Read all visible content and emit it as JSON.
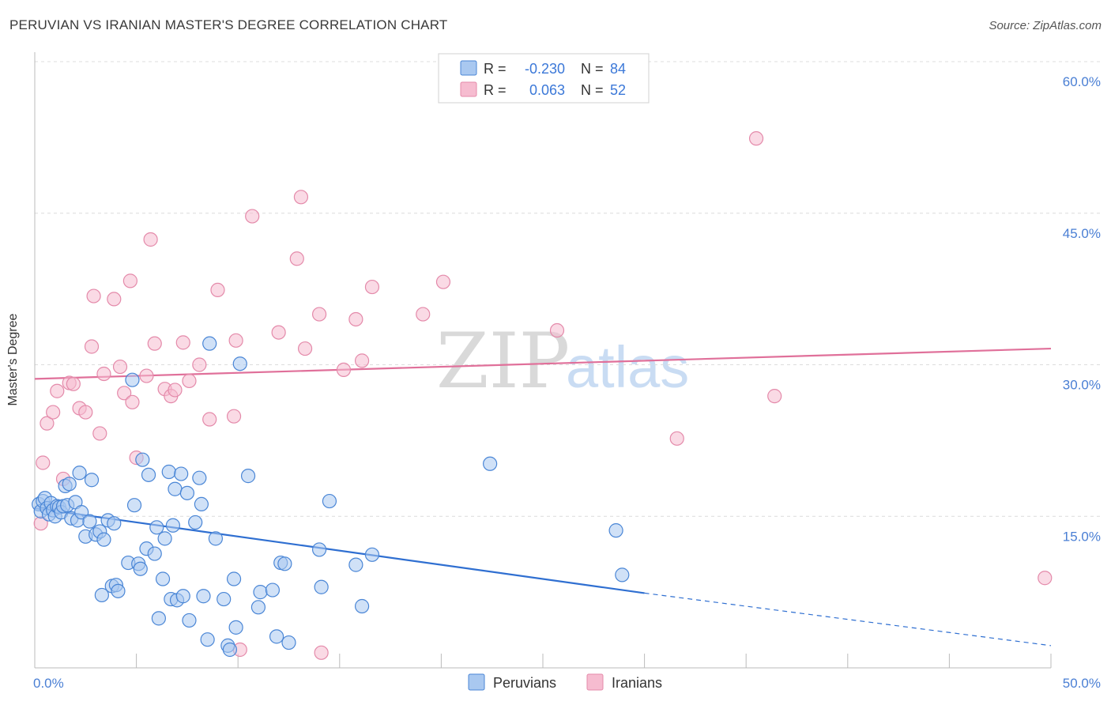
{
  "header": {
    "title": "PERUVIAN VS IRANIAN MASTER'S DEGREE CORRELATION CHART",
    "source": "Source: ZipAtlas.com"
  },
  "watermark": {
    "part1": "ZIP",
    "part2": "atlas"
  },
  "colors": {
    "peruvians_fill": "#a9c8f0",
    "peruvians_stroke": "#4a86d6",
    "peruvians_line": "#2f6fd1",
    "iranians_fill": "#f6bcd0",
    "iranians_stroke": "#e48aaa",
    "iranians_line": "#e0709a",
    "accent_text": "#3b78d8",
    "grid": "#dcdcdc"
  },
  "stats": {
    "peruvians": {
      "r_label": "R =",
      "r_value": "-0.230",
      "n_label": "N =",
      "n_value": "84"
    },
    "iranians": {
      "r_label": "R =",
      "r_value": "0.063",
      "n_label": "N =",
      "n_value": "52"
    }
  },
  "legend": {
    "peruvians": "Peruvians",
    "iranians": "Iranians"
  },
  "chart_data": {
    "type": "scatter",
    "title": "PERUVIAN VS IRANIAN MASTER'S DEGREE CORRELATION CHART",
    "xlabel": "",
    "ylabel": "Master's Degree",
    "xlim": [
      0,
      50
    ],
    "ylim": [
      0,
      60
    ],
    "x_tick_labels": [
      {
        "value": 0,
        "label": "0.0%"
      },
      {
        "value": 50,
        "label": "50.0%"
      }
    ],
    "y_tick_labels": [
      {
        "value": 15,
        "label": "15.0%"
      },
      {
        "value": 30,
        "label": "30.0%"
      },
      {
        "value": 45,
        "label": "45.0%"
      },
      {
        "value": 60,
        "label": "60.0%"
      }
    ],
    "grid": true,
    "legend_position": "bottom-center",
    "series": [
      {
        "name": "Peruvians",
        "R": -0.23,
        "N": 84,
        "trend": {
          "x0": 0,
          "y0": 15.8,
          "x1": 30,
          "y1": 7.4,
          "dashed_to_x": 50,
          "dashed_to_y": 2.2
        },
        "points": [
          [
            0.2,
            16.2
          ],
          [
            0.3,
            15.5
          ],
          [
            0.4,
            16.5
          ],
          [
            0.5,
            16.8
          ],
          [
            0.6,
            15.8
          ],
          [
            0.7,
            15.2
          ],
          [
            0.8,
            16.3
          ],
          [
            0.9,
            15.6
          ],
          [
            1.0,
            15.0
          ],
          [
            1.1,
            16.0
          ],
          [
            1.2,
            15.9
          ],
          [
            1.3,
            15.4
          ],
          [
            1.4,
            16.0
          ],
          [
            1.5,
            18.0
          ],
          [
            1.6,
            16.1
          ],
          [
            1.7,
            18.2
          ],
          [
            1.8,
            14.8
          ],
          [
            2.0,
            16.4
          ],
          [
            2.1,
            14.6
          ],
          [
            2.2,
            19.3
          ],
          [
            2.3,
            15.4
          ],
          [
            2.5,
            13.0
          ],
          [
            2.7,
            14.5
          ],
          [
            2.8,
            18.6
          ],
          [
            3.0,
            13.2
          ],
          [
            3.2,
            13.5
          ],
          [
            3.3,
            7.2
          ],
          [
            3.4,
            12.7
          ],
          [
            3.6,
            14.6
          ],
          [
            3.8,
            8.1
          ],
          [
            3.9,
            14.3
          ],
          [
            4.0,
            8.2
          ],
          [
            4.1,
            7.6
          ],
          [
            4.6,
            10.4
          ],
          [
            4.8,
            28.5
          ],
          [
            4.9,
            16.1
          ],
          [
            5.1,
            10.3
          ],
          [
            5.2,
            9.8
          ],
          [
            5.3,
            20.6
          ],
          [
            5.5,
            11.8
          ],
          [
            5.6,
            19.1
          ],
          [
            5.9,
            11.3
          ],
          [
            6.0,
            13.9
          ],
          [
            6.1,
            4.9
          ],
          [
            6.3,
            8.8
          ],
          [
            6.4,
            12.8
          ],
          [
            6.6,
            19.4
          ],
          [
            6.7,
            6.8
          ],
          [
            6.8,
            14.1
          ],
          [
            6.9,
            17.7
          ],
          [
            7.0,
            6.7
          ],
          [
            7.2,
            19.2
          ],
          [
            7.3,
            7.1
          ],
          [
            7.5,
            17.3
          ],
          [
            7.6,
            4.7
          ],
          [
            7.9,
            14.4
          ],
          [
            8.1,
            18.8
          ],
          [
            8.2,
            16.2
          ],
          [
            8.3,
            7.1
          ],
          [
            8.5,
            2.8
          ],
          [
            8.6,
            32.1
          ],
          [
            8.9,
            12.8
          ],
          [
            9.3,
            6.8
          ],
          [
            9.5,
            2.2
          ],
          [
            9.6,
            1.8
          ],
          [
            9.8,
            8.8
          ],
          [
            9.9,
            4.0
          ],
          [
            10.1,
            30.1
          ],
          [
            10.5,
            19.0
          ],
          [
            11.0,
            6.0
          ],
          [
            11.1,
            7.5
          ],
          [
            11.7,
            7.7
          ],
          [
            11.9,
            3.1
          ],
          [
            12.1,
            10.4
          ],
          [
            12.3,
            10.3
          ],
          [
            12.5,
            2.5
          ],
          [
            14.0,
            11.7
          ],
          [
            14.1,
            8.0
          ],
          [
            14.5,
            16.5
          ],
          [
            15.8,
            10.2
          ],
          [
            16.1,
            6.1
          ],
          [
            16.6,
            11.2
          ],
          [
            22.4,
            20.2
          ],
          [
            28.6,
            13.6
          ],
          [
            28.9,
            9.2
          ]
        ]
      },
      {
        "name": "Iranians",
        "R": 0.063,
        "N": 52,
        "trend": {
          "x0": 0,
          "y0": 28.6,
          "x1": 50,
          "y1": 31.6
        },
        "points": [
          [
            0.3,
            14.3
          ],
          [
            0.4,
            20.3
          ],
          [
            0.6,
            24.2
          ],
          [
            0.9,
            25.3
          ],
          [
            1.1,
            27.4
          ],
          [
            1.4,
            18.7
          ],
          [
            1.7,
            28.2
          ],
          [
            1.9,
            28.1
          ],
          [
            2.2,
            25.7
          ],
          [
            2.5,
            25.3
          ],
          [
            2.8,
            31.8
          ],
          [
            2.9,
            36.8
          ],
          [
            3.2,
            23.2
          ],
          [
            3.4,
            29.1
          ],
          [
            3.9,
            36.5
          ],
          [
            4.2,
            29.8
          ],
          [
            4.4,
            27.2
          ],
          [
            4.7,
            38.3
          ],
          [
            4.8,
            26.3
          ],
          [
            5.0,
            20.8
          ],
          [
            5.5,
            28.9
          ],
          [
            5.7,
            42.4
          ],
          [
            5.9,
            32.1
          ],
          [
            6.4,
            27.6
          ],
          [
            6.7,
            26.9
          ],
          [
            6.9,
            27.5
          ],
          [
            7.3,
            32.2
          ],
          [
            7.6,
            28.4
          ],
          [
            8.1,
            30.0
          ],
          [
            8.6,
            24.6
          ],
          [
            9.0,
            37.4
          ],
          [
            9.8,
            24.9
          ],
          [
            9.9,
            32.4
          ],
          [
            10.1,
            1.8
          ],
          [
            10.7,
            44.7
          ],
          [
            12.0,
            33.2
          ],
          [
            12.9,
            40.5
          ],
          [
            13.1,
            46.6
          ],
          [
            13.3,
            31.6
          ],
          [
            14.0,
            35.0
          ],
          [
            14.1,
            1.5
          ],
          [
            15.2,
            29.5
          ],
          [
            15.8,
            34.5
          ],
          [
            16.1,
            30.4
          ],
          [
            16.6,
            37.7
          ],
          [
            19.1,
            35.0
          ],
          [
            20.1,
            38.2
          ],
          [
            25.7,
            33.4
          ],
          [
            31.6,
            22.7
          ],
          [
            35.5,
            52.4
          ],
          [
            36.4,
            26.9
          ],
          [
            49.7,
            8.9
          ]
        ]
      }
    ]
  }
}
